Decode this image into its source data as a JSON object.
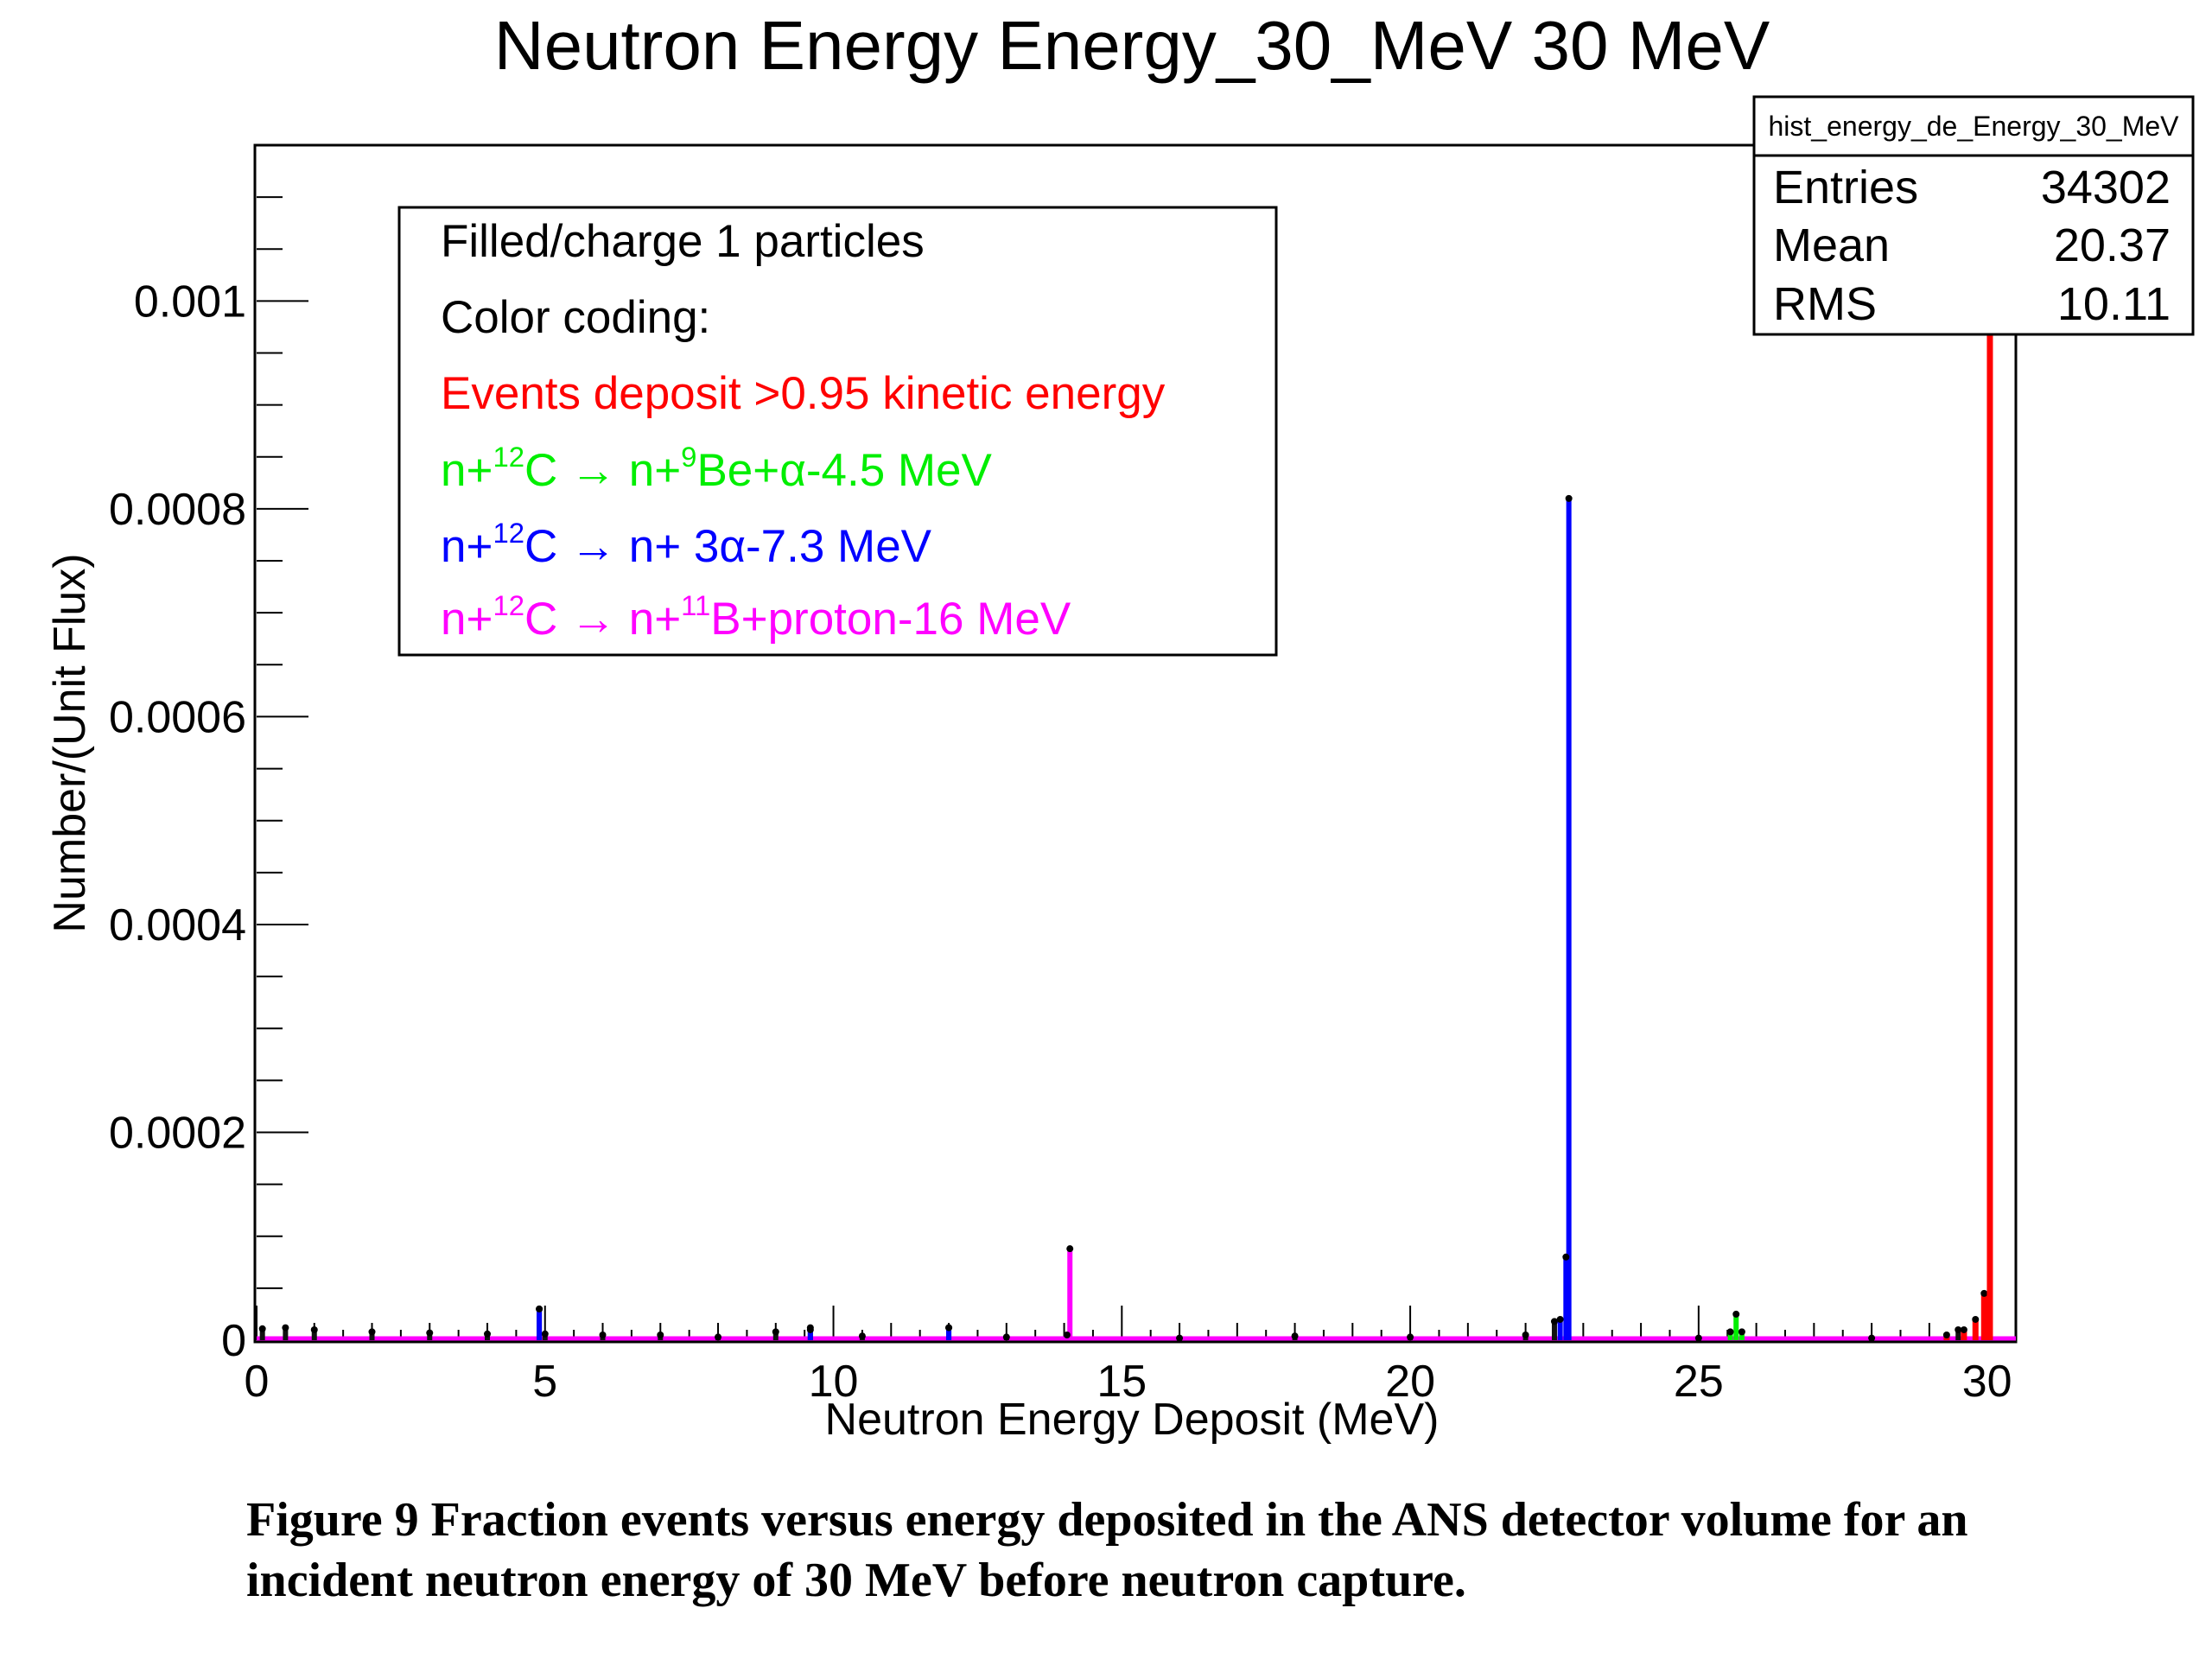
{
  "chart_data": {
    "type": "histogram",
    "title": "Neutron Energy Energy_30_MeV 30 MeV",
    "xlabel": "Neutron Energy Deposit (MeV)",
    "ylabel": "Number/(Unit Flux)",
    "xlim": [
      0,
      30.5
    ],
    "ylim": [
      0,
      0.00115
    ],
    "x_ticks": [
      0,
      5,
      10,
      15,
      20,
      25,
      30
    ],
    "x_tick_labels": [
      "0",
      "5",
      "10",
      "15",
      "20",
      "25",
      "30"
    ],
    "y_ticks": [
      0,
      0.0002,
      0.0004,
      0.0006,
      0.0008,
      0.001
    ],
    "y_tick_labels": [
      "0",
      "0.0002",
      "0.0004",
      "0.0006",
      "0.0008",
      "0.001"
    ],
    "grid": false,
    "stats_box": {
      "name": "hist_energy_de_Energy_30_MeV",
      "rows": [
        {
          "label": "Entries",
          "value": "34302"
        },
        {
          "label": "Mean",
          "value": "20.37"
        },
        {
          "label": "RMS",
          "value": "10.11"
        }
      ]
    },
    "legend": {
      "position": "top-left",
      "lines": {
        "l1": "Filled/charge 1 particles",
        "l2": "Color coding:",
        "l3": "Events deposit >0.95 kinetic energy",
        "l4": {
          "a": "n+",
          "b": "12",
          "c": "C → n+",
          "d": "9",
          "e": "Be+α-4.5 MeV"
        },
        "l5": {
          "a": "n+",
          "b": "12",
          "c": "C → n+ 3α-7.3 MeV"
        },
        "l6": {
          "a": "n+",
          "b": "12",
          "c": "C → n+",
          "d": "11",
          "e": "B+proton-16 MeV"
        }
      }
    },
    "series": [
      {
        "color": "#111111",
        "points": [
          [
            0.1,
            1.1e-05
          ],
          [
            0.5,
            1.2e-05
          ],
          [
            1.0,
            1e-05
          ],
          [
            2.0,
            8e-06
          ],
          [
            3.0,
            7e-06
          ],
          [
            4.0,
            6e-06
          ],
          [
            4.9,
            3e-05
          ],
          [
            5.0,
            6e-06
          ],
          [
            6.0,
            5e-06
          ],
          [
            7.0,
            5e-06
          ],
          [
            8.0,
            3e-06
          ],
          [
            9.0,
            8e-06
          ],
          [
            9.6,
            1.2e-05
          ],
          [
            10.5,
            4e-06
          ],
          [
            12.0,
            1.2e-05
          ],
          [
            13.0,
            3e-06
          ],
          [
            16.0,
            2e-06
          ],
          [
            18.0,
            4e-06
          ],
          [
            20.0,
            3e-06
          ],
          [
            22.0,
            5e-06
          ],
          [
            22.5,
            1.8e-05
          ],
          [
            25.0,
            2e-06
          ],
          [
            28.0,
            2e-06
          ],
          [
            29.5,
            1e-05
          ]
        ]
      },
      {
        "color": "#ff0000",
        "points": [
          [
            29.3,
            5e-06
          ],
          [
            29.6,
            1e-05
          ],
          [
            29.8,
            2e-05
          ],
          [
            29.95,
            4.5e-05
          ],
          [
            30.05,
            0.00108
          ]
        ]
      },
      {
        "color": "#00ee00",
        "points": [
          [
            25.65,
            2.5e-05
          ],
          [
            25.55,
            8e-06
          ],
          [
            25.75,
            8e-06
          ]
        ]
      },
      {
        "color": "#0000ff",
        "points": [
          [
            22.75,
            0.00081
          ],
          [
            22.7,
            8e-05
          ],
          [
            22.6,
            2e-05
          ],
          [
            4.9,
            3e-05
          ],
          [
            12.0,
            1.2e-05
          ],
          [
            9.6,
            1e-05
          ]
        ]
      },
      {
        "color": "#ff00ff",
        "points": [
          [
            14.1,
            8.8e-05
          ],
          [
            14.05,
            5e-06
          ]
        ]
      }
    ]
  },
  "caption": {
    "l1": "Figure 9 Fraction events versus energy deposited in the ANS detector volume for an",
    "l2": "incident neutron energy of 30 MeV before neutron capture."
  }
}
